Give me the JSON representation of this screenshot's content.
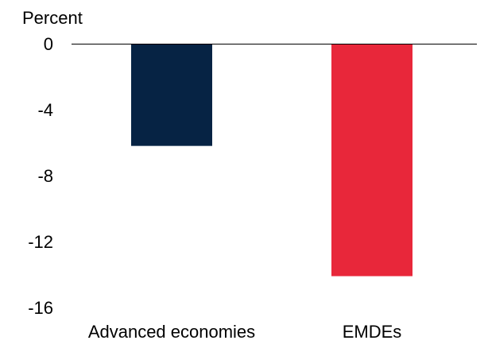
{
  "chart_data": {
    "type": "bar",
    "unit_label": "Percent",
    "categories": [
      "Advanced economies",
      "EMDEs"
    ],
    "values": [
      -6.2,
      -14.1
    ],
    "colors": [
      "#062344",
      "#e8273a"
    ],
    "ylim": [
      -16,
      0
    ],
    "yticks": [
      0,
      -4,
      -8,
      -12,
      -16
    ],
    "grid": false,
    "legend": "none"
  }
}
